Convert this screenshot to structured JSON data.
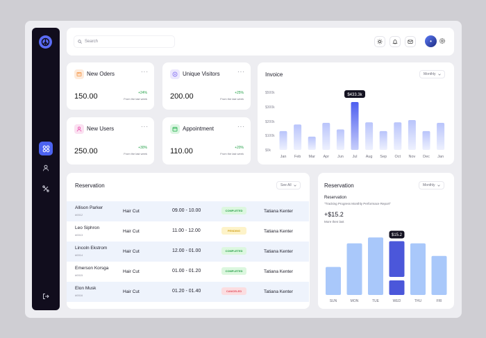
{
  "topbar": {
    "search_placeholder": "Search"
  },
  "stats": [
    {
      "title": "New Oders",
      "value": "150.00",
      "delta": "+24%",
      "from": "From the last week",
      "icon": "box-icon",
      "color": "#f6a15a"
    },
    {
      "title": "Unique Visitors",
      "value": "200.00",
      "delta": "+25%",
      "from": "From the last week",
      "icon": "visitor-icon",
      "color": "#8f7cf4"
    },
    {
      "title": "New Users",
      "value": "250.00",
      "delta": "+30%",
      "from": "From the last week",
      "icon": "user-icon",
      "color": "#ea5cb3"
    },
    {
      "title": "Appointment",
      "value": "110.00",
      "delta": "+20%",
      "from": "From the last week",
      "icon": "calendar-icon",
      "color": "#35b85b"
    }
  ],
  "invoice": {
    "title": "Invoice",
    "filter": "Monthly",
    "tooltip": "$433.3k",
    "chart_data": {
      "type": "bar",
      "categories": [
        "Jan",
        "Feb",
        "Mar",
        "Apr",
        "Jun",
        "Jul",
        "Aug",
        "Sep",
        "Oct",
        "Nov",
        "Dec",
        "Jan"
      ],
      "values": [
        170,
        230,
        120,
        245,
        185,
        433.3,
        250,
        170,
        250,
        270,
        170,
        245
      ],
      "highlight_index": 5,
      "y_ticks": [
        "$500k",
        "$300k",
        "$200k",
        "$100k",
        "$0k"
      ],
      "ylim": [
        0,
        500
      ]
    }
  },
  "reservation_table": {
    "title": "Reservation",
    "see_all": "See All",
    "rows": [
      {
        "name": "Allison Parker",
        "id": "#0012",
        "service": "Hair Cut",
        "time": "09.00 - 10.00",
        "status": "COMPLETED",
        "status_kind": "completed",
        "staff": "Tatiana Kenter"
      },
      {
        "name": "Leo Siphron",
        "id": "#0013",
        "service": "Hair Cut",
        "time": "11.00 - 12.00",
        "status": "PENDING",
        "status_kind": "pending",
        "staff": "Tatiana Kenter"
      },
      {
        "name": "Lincoln Ekstrom",
        "id": "#0014",
        "service": "Hair Cut",
        "time": "12.00 - 01.00",
        "status": "COMPLETED",
        "status_kind": "completed",
        "staff": "Tatiana Kenter"
      },
      {
        "name": "Emerson Korsga",
        "id": "#0015",
        "service": "Hair Cut",
        "time": "01.00 - 01.20",
        "status": "COMPLETED",
        "status_kind": "completed",
        "staff": "Tatiana Kenter"
      },
      {
        "name": "Elon Musk",
        "id": "#0016",
        "service": "Hair Cut",
        "time": "01.20 - 01.40",
        "status": "CANCELED",
        "status_kind": "canceled",
        "staff": "Tatiana Kenter"
      }
    ]
  },
  "reservation_chart": {
    "title": "Reservation",
    "filter": "Monthly",
    "subtitle": "Reservation",
    "description": "\"Tracking Progress Monthly Performace Report\"",
    "value": "+$15.2",
    "note": "More then last",
    "tooltip": "$15.2",
    "chart_data": {
      "type": "bar",
      "categories": [
        "SUN",
        "MON",
        "TUE",
        "WED",
        "THU",
        "FRI"
      ],
      "values": [
        38,
        70,
        78,
        73,
        70,
        53
      ],
      "highlight_index": 3,
      "ylim": [
        0,
        80
      ]
    }
  }
}
